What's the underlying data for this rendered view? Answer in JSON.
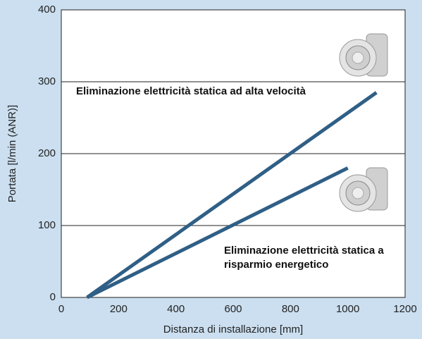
{
  "chart_data": {
    "type": "line",
    "x_label": "Distanza di installazione [mm]",
    "y_label": "Portata [l/min (ANR)]",
    "xlim": [
      0,
      1200
    ],
    "xticks": [
      0,
      200,
      400,
      600,
      800,
      1000,
      1200
    ],
    "ylim": [
      0,
      400
    ],
    "yticks": [
      0,
      100,
      200,
      300,
      400
    ],
    "grid": true,
    "series": [
      {
        "name": "Eliminazione elettricità statica ad alta velocità",
        "color": "#2f5f86",
        "x": [
          90,
          1100
        ],
        "values": [
          0,
          285
        ]
      },
      {
        "name": "Eliminazione elettricità statica a risparmio energetico",
        "color": "#2f5f86",
        "x": [
          90,
          1000
        ],
        "values": [
          0,
          180
        ]
      }
    ]
  }
}
